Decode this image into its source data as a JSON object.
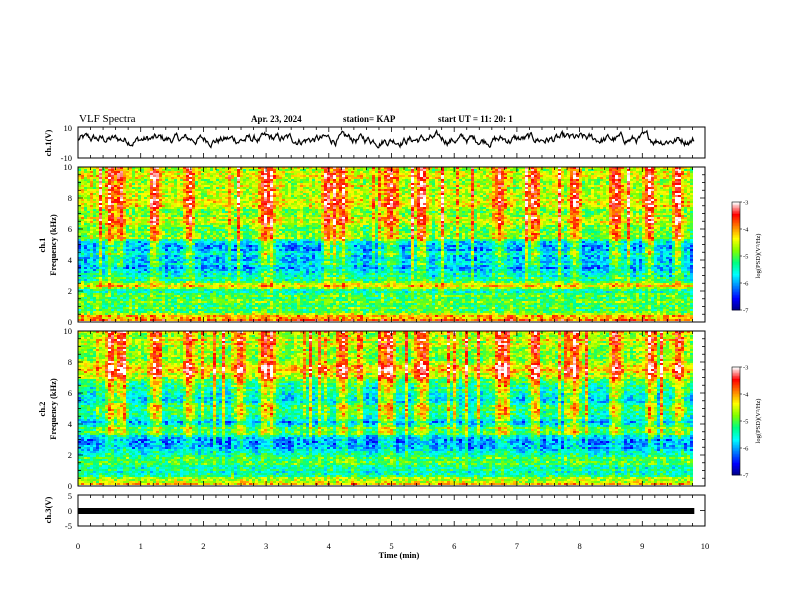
{
  "header": {
    "title": "VLF Spectra",
    "date": "Apr. 23, 2024",
    "station": "station= KAP",
    "start": "start  UT  =   11: 20: 1"
  },
  "colorbar": {
    "label": "log(PSD)(V²/Hz)",
    "ticks": [
      "-3",
      "-4",
      "-5",
      "-6",
      "-7"
    ],
    "colors": [
      "#000080",
      "#0000ff",
      "#0080ff",
      "#00ffff",
      "#00ff80",
      "#80ff00",
      "#ffff00",
      "#ff8000",
      "#ff0000",
      "#ffffff"
    ]
  },
  "chart_data": [
    {
      "type": "line",
      "name": "ch.1 waveform",
      "ylabel": "ch.1(V)",
      "yticks": [
        "10",
        "-10"
      ],
      "ylim": [
        -10,
        10
      ],
      "xlim": [
        0,
        9.83
      ],
      "x_unit": "min",
      "shape": "noisy trace around +2 V, mostly between -3 and +8 V"
    },
    {
      "type": "heatmap",
      "name": "ch.1 spectrogram",
      "ylabel": "ch.1",
      "ylabel2": "Frequency  (kHz)",
      "yticks": [
        "0",
        "2",
        "4",
        "6",
        "8",
        "10"
      ],
      "ylim": [
        0,
        10
      ],
      "xlim": [
        0,
        9.83
      ],
      "zlim": [
        -7,
        -3
      ],
      "z_label": "log(PSD)(V²/Hz)",
      "freq_profile_khz_logpsd": [
        [
          0.0,
          -3.8
        ],
        [
          0.3,
          -4.0
        ],
        [
          0.6,
          -5.0
        ],
        [
          1.0,
          -5.0
        ],
        [
          1.5,
          -5.0
        ],
        [
          2.0,
          -5.3
        ],
        [
          2.3,
          -3.9
        ],
        [
          2.6,
          -5.3
        ],
        [
          3.0,
          -5.6
        ],
        [
          3.5,
          -5.9
        ],
        [
          4.0,
          -5.6
        ],
        [
          4.5,
          -5.8
        ],
        [
          5.0,
          -5.9
        ],
        [
          5.4,
          -4.8
        ],
        [
          5.7,
          -5.0
        ],
        [
          6.0,
          -5.0
        ],
        [
          6.4,
          -4.2
        ],
        [
          7.0,
          -4.8
        ],
        [
          7.6,
          -4.2
        ],
        [
          8.0,
          -4.7
        ],
        [
          9.0,
          -4.5
        ],
        [
          10.0,
          -4.5
        ]
      ],
      "bursts_min": [
        0.5,
        0.65,
        1.2,
        1.75,
        2.95,
        3.05,
        3.95,
        4.2,
        4.95,
        5.45,
        6.7,
        7.25,
        7.9,
        8.55,
        9.1,
        9.55
      ]
    },
    {
      "type": "heatmap",
      "name": "ch.2 spectrogram",
      "ylabel": "ch.2",
      "ylabel2": "Frequency  (kHz)",
      "yticks": [
        "0",
        "2",
        "4",
        "6",
        "8",
        "10"
      ],
      "ylim": [
        0,
        10
      ],
      "xlim": [
        0,
        9.83
      ],
      "zlim": [
        -7,
        -3
      ],
      "z_label": "log(PSD)(V²/Hz)",
      "freq_profile_khz_logpsd": [
        [
          0.0,
          -3.8
        ],
        [
          0.3,
          -4.5
        ],
        [
          0.6,
          -5.2
        ],
        [
          1.0,
          -5.3
        ],
        [
          1.5,
          -5.1
        ],
        [
          2.0,
          -5.2
        ],
        [
          2.5,
          -6.0
        ],
        [
          3.0,
          -6.3
        ],
        [
          3.5,
          -4.8
        ],
        [
          4.0,
          -5.8
        ],
        [
          4.5,
          -5.5
        ],
        [
          5.0,
          -5.0
        ],
        [
          5.5,
          -5.6
        ],
        [
          6.0,
          -5.5
        ],
        [
          6.5,
          -5.3
        ],
        [
          7.0,
          -4.6
        ],
        [
          7.5,
          -4.3
        ],
        [
          8.0,
          -4.8
        ],
        [
          9.0,
          -4.6
        ],
        [
          10.0,
          -4.5
        ]
      ],
      "bursts_min": [
        0.5,
        0.65,
        1.2,
        1.75,
        2.55,
        2.95,
        3.05,
        4.2,
        4.95,
        5.45,
        6.7,
        7.25,
        7.9,
        8.55,
        9.1,
        9.55
      ]
    },
    {
      "type": "line",
      "name": "ch.3 trace",
      "ylabel": "ch.3(V)",
      "yticks": [
        "5",
        "0",
        "-5"
      ],
      "ylim": [
        -5,
        5
      ],
      "xlim": [
        0,
        9.83
      ],
      "value": 0,
      "style": "thick flat line at 0 V"
    }
  ],
  "xaxis": {
    "label": "Time  (min)",
    "ticks": [
      "0",
      "1",
      "2",
      "3",
      "4",
      "5",
      "6",
      "7",
      "8",
      "9",
      "10"
    ],
    "range": [
      0,
      10
    ]
  }
}
